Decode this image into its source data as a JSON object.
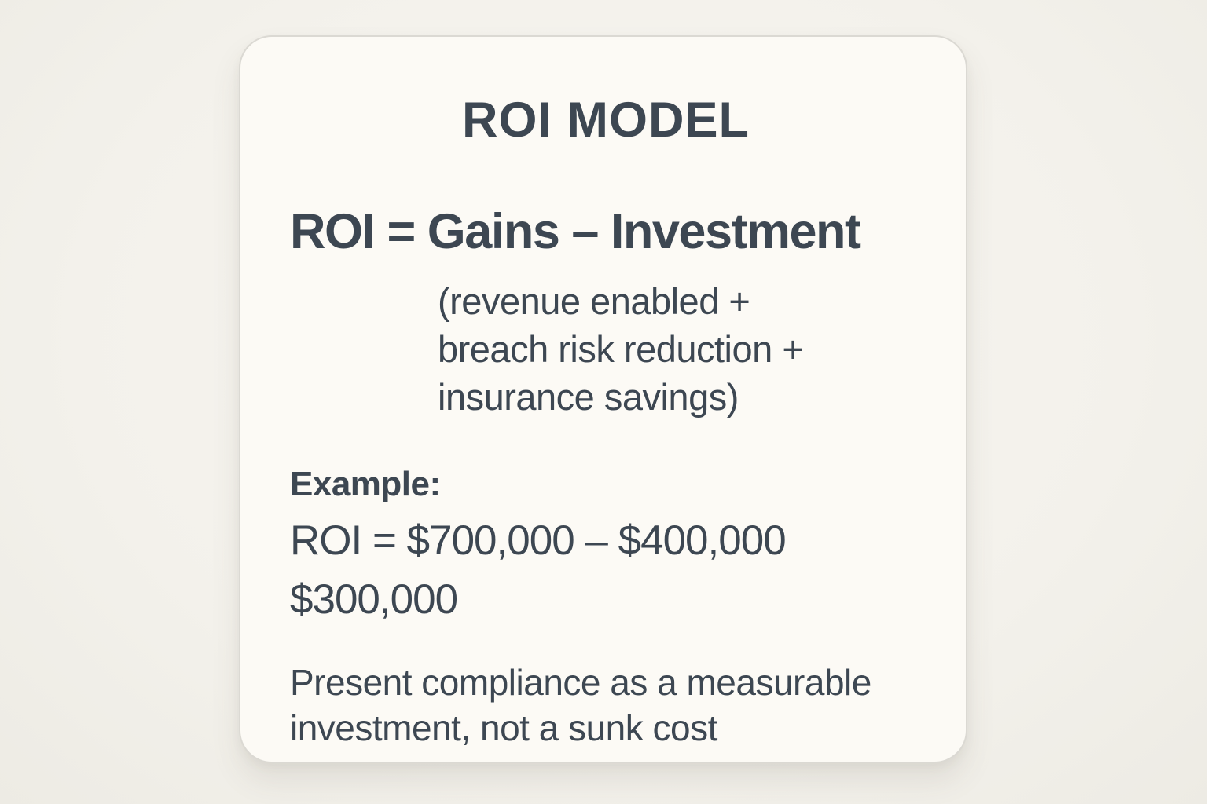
{
  "colors": {
    "page_background": "#f3f1eb",
    "card_background": "#fcfaf5",
    "card_border": "#dbd9d3",
    "text": "#3d4752"
  },
  "card": {
    "title": "ROI MODEL",
    "formula": {
      "main": "ROI = Gains – Investment",
      "detail_lines": [
        "(revenue enabled +",
        "breach risk reduction +",
        "insurance savings)"
      ]
    },
    "example": {
      "label": "Example:",
      "calculation": "ROI = $700,000 – $400,000",
      "result": "$300,000"
    },
    "note_lines": [
      "Present compliance as a measurable",
      "investment, not a sunk cost"
    ]
  }
}
